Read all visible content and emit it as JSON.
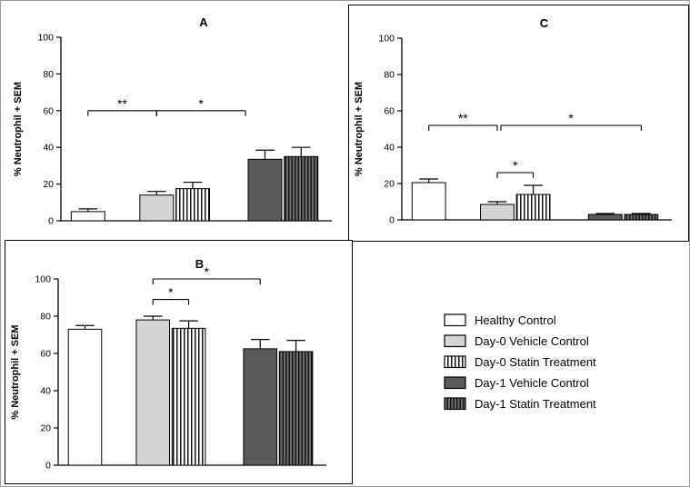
{
  "figure": {
    "description": "Three-panel bar figure of % Neutrophil + SEM with significance brackets",
    "panels": [
      "A",
      "B",
      "C"
    ]
  },
  "colors": {
    "axis_color": "#000000",
    "outer_border": "#9b9b9b",
    "panel_border": "#000000",
    "healthy_fill": "#ffffff",
    "day0_vehicle_fill": "#d4d4d4",
    "day1_vehicle_fill": "#5a5a5a",
    "stripe_light_bg": "#ffffff",
    "stripe_dark_bg": "#6d6d6d",
    "stripe_color": "#111111"
  },
  "styles": {
    "healthy": {
      "fill": "#ffffff"
    },
    "day0_vehicle": {
      "fill": "#d4d4d4"
    },
    "day0_statin": {
      "pattern": "vlight"
    },
    "day1_vehicle": {
      "fill": "#5a5a5a"
    },
    "day1_statin": {
      "pattern": "vdark"
    }
  },
  "group_styles": [
    "healthy",
    "day0_vehicle",
    "day0_statin",
    "day1_vehicle",
    "day1_statin"
  ],
  "chart_data": [
    {
      "type": "bar",
      "panel": "A",
      "title": "A",
      "ylabel": "% Neutrophil + SEM",
      "ylim": [
        0,
        100
      ],
      "yticks": [
        0,
        20,
        40,
        60,
        80,
        100
      ],
      "grid": false,
      "legend_position": "none",
      "categories": [
        "Healthy Control",
        "Day-0 Vehicle Control",
        "Day-0 Statin Treatment",
        "Day-1 Vehicle Control",
        "Day-1 Statin Treatment"
      ],
      "values": [
        5,
        14,
        17.5,
        33.5,
        35
      ],
      "errors": [
        1.5,
        2,
        3.5,
        5,
        5
      ],
      "significance": [
        {
          "groups": [
            0,
            1
          ],
          "y": 60,
          "label": "**"
        },
        {
          "groups": [
            1,
            3
          ],
          "y": 60,
          "label": "*",
          "x2_edge": "left"
        }
      ]
    },
    {
      "type": "bar",
      "panel": "C",
      "title": "C",
      "ylabel": "% Neutrophil + SEM",
      "ylim": [
        0,
        100
      ],
      "yticks": [
        0,
        20,
        40,
        60,
        80,
        100
      ],
      "grid": false,
      "legend_position": "none",
      "categories": [
        "Healthy Control",
        "Day-0 Vehicle Control",
        "Day-0 Statin Treatment",
        "Day-1 Vehicle Control",
        "Day-1 Statin Treatment"
      ],
      "values": [
        20.5,
        8.5,
        14,
        3,
        3
      ],
      "errors": [
        2,
        1.5,
        5,
        0.5,
        0.5
      ],
      "significance": [
        {
          "groups": [
            0,
            1
          ],
          "y": 52,
          "label": "**"
        },
        {
          "groups": [
            1,
            2
          ],
          "y": 26,
          "label": "*"
        },
        {
          "groups": [
            1,
            4
          ],
          "y": 52,
          "label": "*",
          "x1_offset": 4
        }
      ]
    },
    {
      "type": "bar",
      "panel": "B",
      "title": "B",
      "ylabel": "% Neutrophil + SEM",
      "ylim": [
        0,
        100
      ],
      "yticks": [
        0,
        20,
        40,
        60,
        80,
        100
      ],
      "grid": false,
      "legend_position": "none",
      "categories": [
        "Healthy Control",
        "Day-0 Vehicle Control",
        "Day-0 Statin Treatment",
        "Day-1 Vehicle Control",
        "Day-1 Statin Treatment"
      ],
      "values": [
        73,
        78,
        73.5,
        62.5,
        61
      ],
      "errors": [
        2,
        2,
        4,
        5,
        6
      ],
      "significance": [
        {
          "groups": [
            1,
            2
          ],
          "y": 89,
          "label": "*"
        },
        {
          "groups": [
            1,
            3
          ],
          "y": 100,
          "label": "*"
        }
      ]
    }
  ],
  "legend": {
    "items": [
      {
        "label": "Healthy Control",
        "style": "healthy"
      },
      {
        "label": "Day-0 Vehicle Control",
        "style": "day0_vehicle"
      },
      {
        "label": "Day-0 Statin Treatment",
        "style": "day0_statin"
      },
      {
        "label": "Day-1 Vehicle Control",
        "style": "day1_vehicle"
      },
      {
        "label": "Day-1 Statin Treatment",
        "style": "day1_statin"
      }
    ]
  }
}
